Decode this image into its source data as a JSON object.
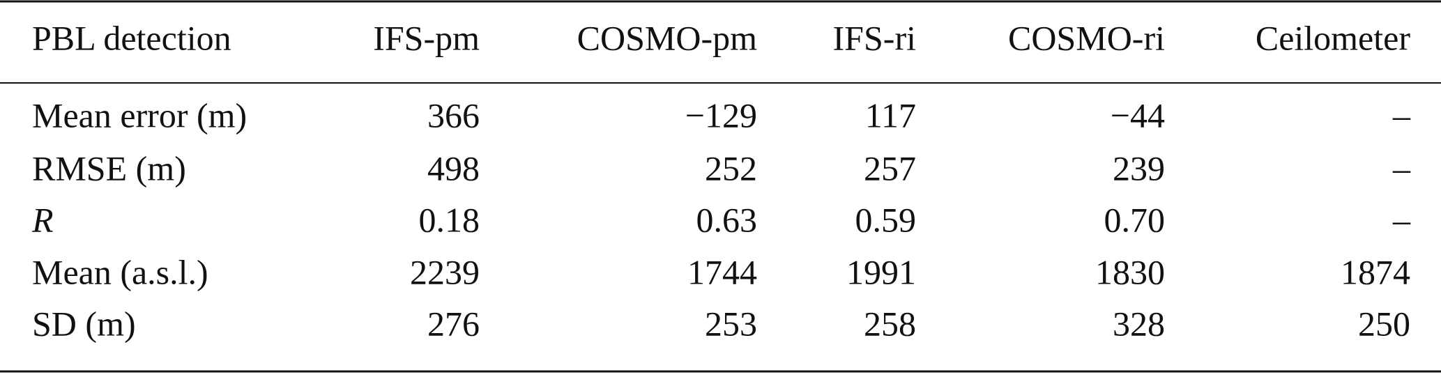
{
  "table": {
    "header": [
      "PBL detection",
      "IFS-pm",
      "COSMO-pm",
      "IFS-ri",
      "COSMO-ri",
      "Ceilometer"
    ],
    "rows": [
      [
        "Mean error (m)",
        "366",
        "−129",
        "117",
        "−44",
        "–"
      ],
      [
        "RMSE (m)",
        "498",
        "252",
        "257",
        "239",
        "–"
      ],
      [
        "R",
        "0.18",
        "0.63",
        "0.59",
        "0.70",
        "–"
      ],
      [
        "Mean (a.s.l.)",
        "2239",
        "1744",
        "1991",
        "1830",
        "1874"
      ],
      [
        "SD (m)",
        "276",
        "253",
        "258",
        "328",
        "250"
      ]
    ]
  }
}
